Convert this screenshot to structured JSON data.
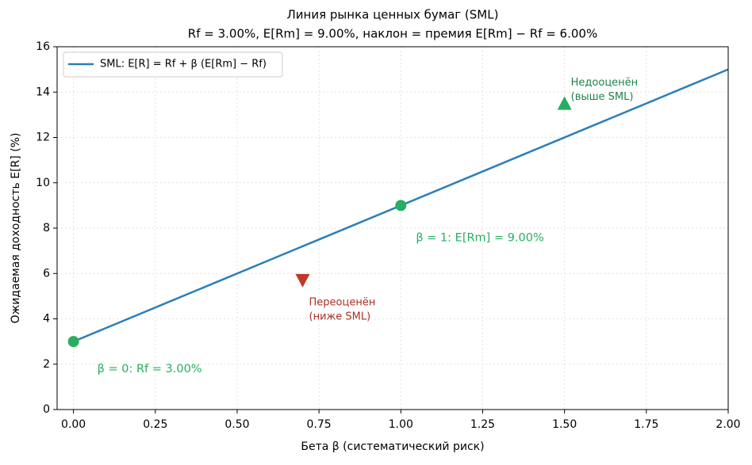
{
  "chart_data": {
    "type": "line",
    "title": "Линия рынка ценных бумаг (SML)",
    "subtitle": "Rf = 3.00%, E[Rm] = 9.00%, наклон = премия E[Rm] − Rf = 6.00%",
    "xlabel": "Бета β (систематический риск)",
    "ylabel": "Ожидаемая доходность E[R] (%)",
    "xlim": [
      -0.05,
      2.0
    ],
    "ylim": [
      0,
      16
    ],
    "xticks": [
      {
        "value": 0,
        "label": "0.00"
      },
      {
        "value": 0.25,
        "label": "0.25"
      },
      {
        "value": 0.5,
        "label": "0.50"
      },
      {
        "value": 0.75,
        "label": "0.75"
      },
      {
        "value": 1,
        "label": "1.00"
      },
      {
        "value": 1.25,
        "label": "1.25"
      },
      {
        "value": 1.5,
        "label": "1.50"
      },
      {
        "value": 1.75,
        "label": "1.75"
      },
      {
        "value": 2,
        "label": "2.00"
      }
    ],
    "yticks": [
      0,
      2,
      4,
      6,
      8,
      10,
      12,
      14,
      16
    ],
    "grid": true,
    "legend": "upper left",
    "series": [
      {
        "name": "SML: E[R] = Rf + β (E[Rm] − Rf)",
        "color": "#2a7fb8",
        "x": [
          0,
          2
        ],
        "values": [
          3,
          15
        ]
      }
    ],
    "points": [
      {
        "x": 0,
        "y": 3,
        "color": "#27ae60",
        "marker": "circle"
      },
      {
        "x": 1,
        "y": 9,
        "color": "#27ae60",
        "marker": "circle"
      },
      {
        "x": 0.7,
        "y": 5.7,
        "color": "#c0392b",
        "marker": "triangle-down"
      },
      {
        "x": 1.5,
        "y": 13.5,
        "color": "#27ae60",
        "marker": "triangle-up"
      }
    ],
    "annotations": [
      {
        "lines": [
          "β = 0: Rf = 3.00%"
        ],
        "color": "#27ae60"
      },
      {
        "lines": [
          "β = 1: E[Rm] = 9.00%"
        ],
        "color": "#27ae60"
      },
      {
        "lines": [
          "Переоценён",
          "(ниже SML)"
        ],
        "color": "#a93226"
      },
      {
        "lines": [
          "Недооценён",
          "(выше SML)"
        ],
        "color": "#1e8449"
      }
    ]
  }
}
